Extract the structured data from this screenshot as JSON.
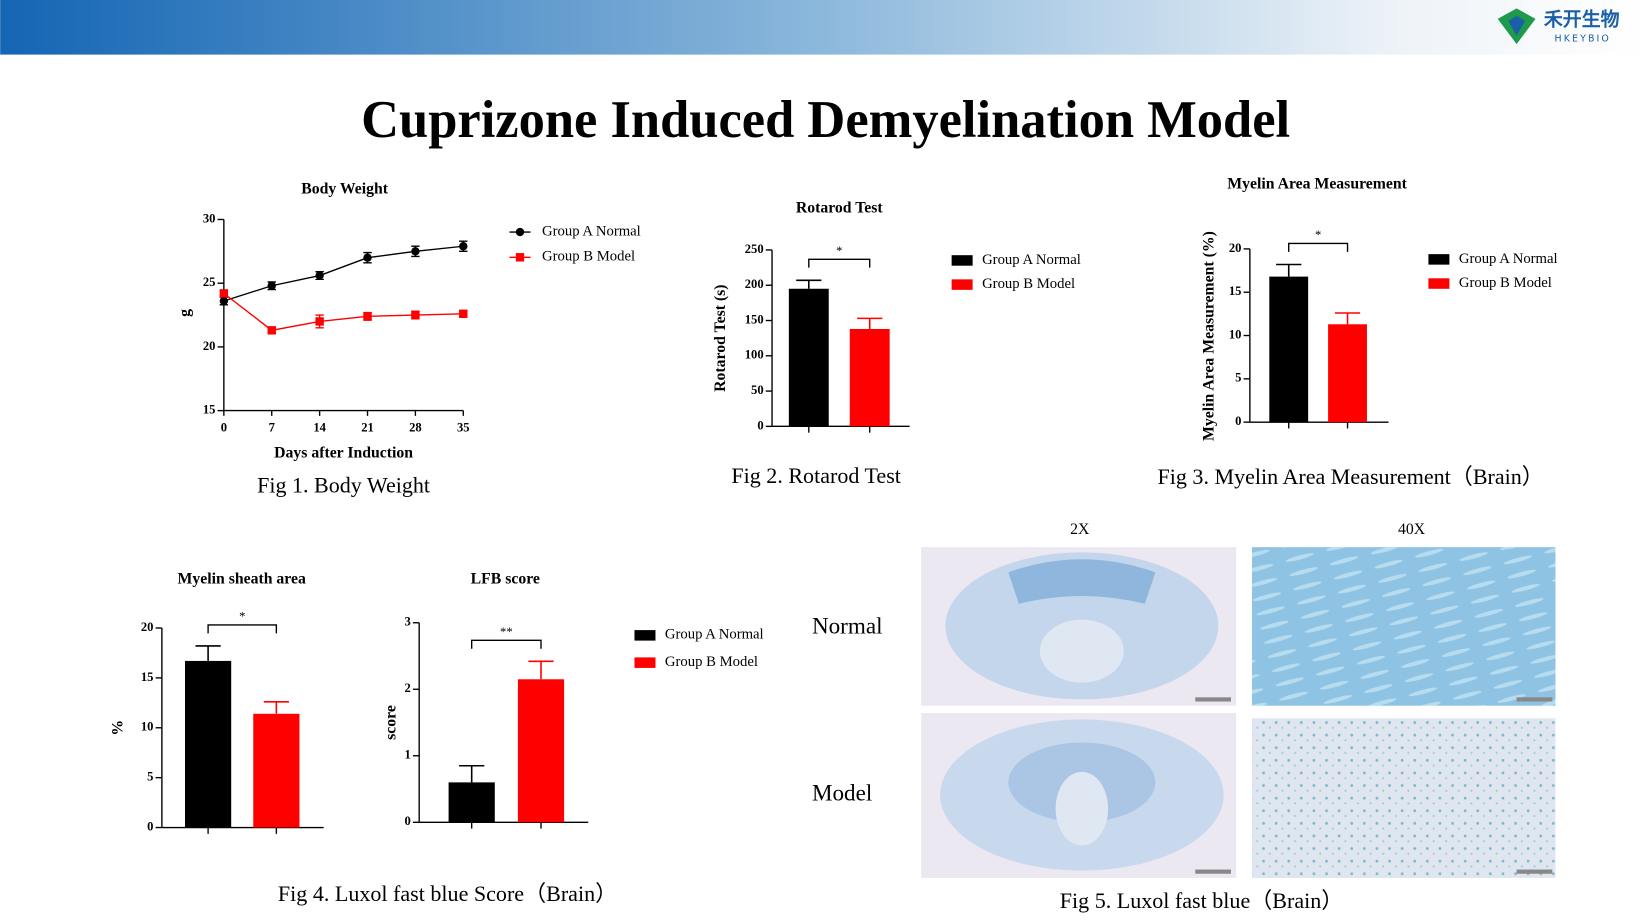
{
  "header": {
    "logo_name": "禾开生物",
    "logo_sub": "HKEYBIO"
  },
  "title": "Cuprizone Induced Demyelination Model",
  "captions": [
    "Fig 1. Body Weight",
    "Fig 2. Rotarod Test",
    "Fig 3. Myelin Area Measurement（Brain）",
    "Fig 4. Luxol fast blue Score（Brain）",
    "Fig 5. Luxol fast blue（Brain）"
  ],
  "figure_5": {
    "columns": [
      "2X",
      "40X"
    ],
    "rows": [
      "Normal",
      "Model"
    ]
  },
  "chart_data": [
    {
      "type": "line",
      "title": "Body Weight",
      "x_label": "Days after Induction",
      "y_label": "g",
      "x": [
        0,
        7,
        14,
        21,
        28,
        35
      ],
      "xlim": [
        0,
        35
      ],
      "xticks": [
        0,
        7,
        14,
        21,
        28,
        35
      ],
      "ylim": [
        15,
        30
      ],
      "yticks": [
        15,
        20,
        25,
        30
      ],
      "legend": true,
      "series": [
        {
          "name": "Group A Normal",
          "color": "#000000",
          "marker": "circle",
          "values": [
            23.6,
            24.8,
            25.6,
            27.0,
            27.5,
            27.9
          ],
          "errors": [
            0.3,
            0.3,
            0.3,
            0.4,
            0.4,
            0.4
          ]
        },
        {
          "name": "Group B Model",
          "color": "#ff0000",
          "marker": "square",
          "values": [
            24.2,
            21.3,
            22.0,
            22.4,
            22.5,
            22.6
          ],
          "errors": [
            0.2,
            0.2,
            0.5,
            0.3,
            0.3,
            0.2
          ]
        }
      ]
    },
    {
      "type": "bar",
      "title": "Rotarod Test",
      "y_label": "Rotarod Test (s)",
      "categories": [
        null
      ],
      "ylim": [
        0,
        250
      ],
      "yticks": [
        0,
        50,
        100,
        150,
        200,
        250
      ],
      "significance": "*",
      "legend": true,
      "series": [
        {
          "name": "Group A Normal",
          "color": "#000000",
          "values": [
            195
          ],
          "errors": [
            12
          ]
        },
        {
          "name": "Group B Model",
          "color": "#ff0000",
          "values": [
            138
          ],
          "errors": [
            15
          ]
        }
      ]
    },
    {
      "type": "bar",
      "title": "Myelin Area Measurement",
      "y_label": "Myelin Area Measurement (%)",
      "categories": [
        null
      ],
      "ylim": [
        0,
        20
      ],
      "yticks": [
        0,
        5,
        10,
        15,
        20
      ],
      "significance": "*",
      "legend": true,
      "series": [
        {
          "name": "Group A Normal",
          "color": "#000000",
          "values": [
            16.8
          ],
          "errors": [
            1.4
          ]
        },
        {
          "name": "Group B Model",
          "color": "#ff0000",
          "values": [
            11.3
          ],
          "errors": [
            1.3
          ]
        }
      ]
    },
    {
      "type": "bar",
      "title": "Myelin sheath area",
      "y_label": "%",
      "categories": [
        null
      ],
      "ylim": [
        0,
        20
      ],
      "yticks": [
        0,
        5,
        10,
        15,
        20
      ],
      "significance": "*",
      "legend": false,
      "series": [
        {
          "name": "Group A Normal",
          "color": "#000000",
          "values": [
            16.7
          ],
          "errors": [
            1.5
          ]
        },
        {
          "name": "Group B Model",
          "color": "#ff0000",
          "values": [
            11.4
          ],
          "errors": [
            1.2
          ]
        }
      ]
    },
    {
      "type": "bar",
      "title": "LFB score",
      "y_label": "score",
      "categories": [
        null
      ],
      "ylim": [
        0,
        3
      ],
      "yticks": [
        0,
        1,
        2,
        3
      ],
      "significance": "**",
      "legend": true,
      "series": [
        {
          "name": "Group A Normal",
          "color": "#000000",
          "values": [
            0.6
          ],
          "errors": [
            0.25
          ]
        },
        {
          "name": "Group B Model",
          "color": "#ff0000",
          "values": [
            2.15
          ],
          "errors": [
            0.27
          ]
        }
      ]
    }
  ]
}
